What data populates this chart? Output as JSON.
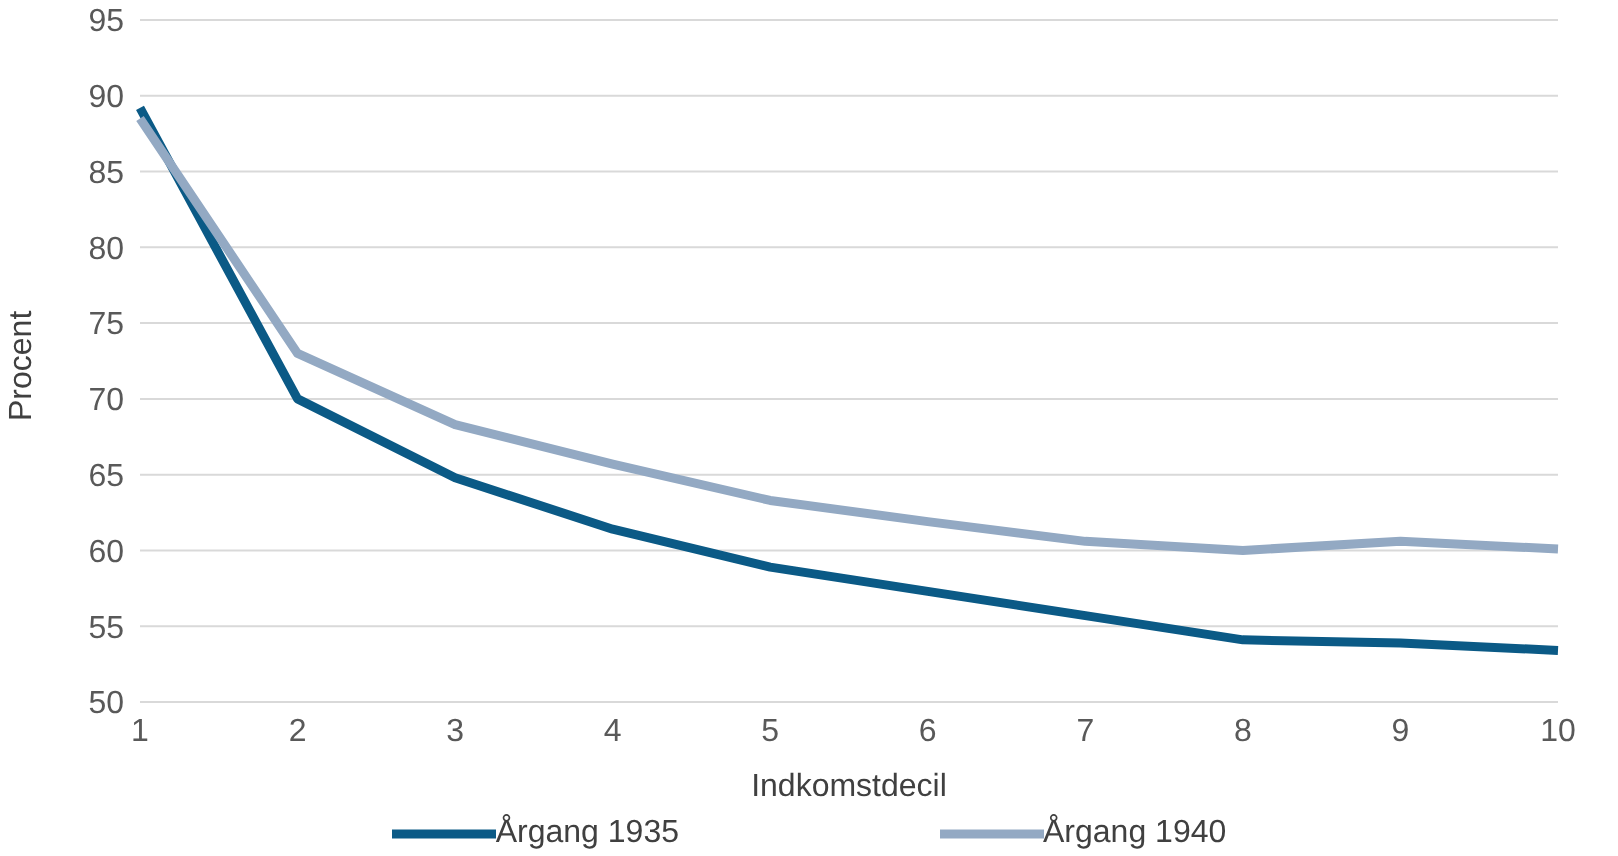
{
  "chart_data": {
    "type": "line",
    "xlabel": "Indkomstdecil",
    "ylabel": "Procent",
    "categories": [
      "1",
      "2",
      "3",
      "4",
      "5",
      "6",
      "7",
      "8",
      "9",
      "10"
    ],
    "series": [
      {
        "name": "Årgang 1935",
        "color": "#0b5a86",
        "values": [
          89.2,
          70,
          64.8,
          61.4,
          58.9,
          57.3,
          55.7,
          54.1,
          53.9,
          53.4
        ]
      },
      {
        "name": "Årgang 1940",
        "color": "#93a9c3",
        "values": [
          88.5,
          73,
          68.3,
          65.7,
          63.3,
          61.9,
          60.6,
          60,
          60.6,
          60.1
        ]
      }
    ],
    "ylim": [
      50,
      95
    ],
    "yticks": [
      50,
      55,
      60,
      65,
      70,
      75,
      80,
      85,
      90,
      95
    ],
    "grid": "y",
    "legend": "bottom",
    "marker": "none",
    "line_style": "solid"
  }
}
